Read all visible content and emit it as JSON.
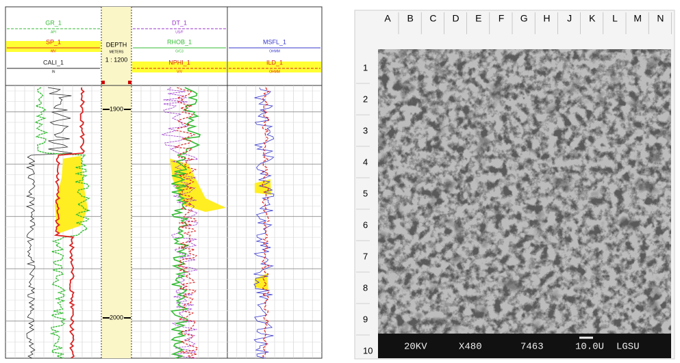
{
  "well_log": {
    "tracks": [
      {
        "curves": [
          {
            "name": "GR_1",
            "unit": "API",
            "color": "#33bb33"
          },
          {
            "name": "SP_1",
            "unit": "MV",
            "color": "#dd2222"
          },
          {
            "name": "CALI_1",
            "unit": "IN",
            "color": "#222222"
          }
        ]
      },
      {
        "curves": [
          {
            "name": "DT_1",
            "unit": "US/F",
            "color": "#9933cc"
          },
          {
            "name": "RHOB_1",
            "unit": "G/C3",
            "color": "#33bb33"
          },
          {
            "name": "NPHI_1",
            "unit": "V/V",
            "color": "#dd2222"
          }
        ]
      },
      {
        "curves": [
          {
            "name": "MSFL_1",
            "unit": "OHMM",
            "color": "#3333cc"
          },
          {
            "name": "ILD_1",
            "unit": "OHMM",
            "color": "#dd2222"
          }
        ]
      }
    ],
    "depth_header": {
      "label": "DEPTH",
      "unit": "METERS",
      "scale": "1 : 1200"
    },
    "depth_marks": [
      "1900",
      "2000"
    ]
  },
  "sem_image": {
    "columns": [
      "A",
      "B",
      "C",
      "D",
      "E",
      "F",
      "G",
      "H",
      "J",
      "K",
      "L",
      "M",
      "N"
    ],
    "rows": [
      "1",
      "2",
      "3",
      "4",
      "5",
      "6",
      "7",
      "8",
      "9",
      "10"
    ],
    "caption": [
      "20KV",
      "X480",
      "7463",
      "10.0U",
      "LGSU"
    ]
  }
}
